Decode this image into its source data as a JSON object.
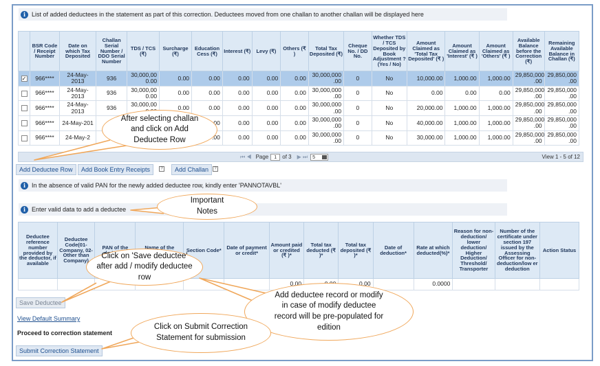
{
  "info1": "List of added deductees in the statement as part of this correction. Deductees moved from one challan to another challan will be displayed here",
  "grid1": {
    "headers": [
      "",
      "BSR Code / Receipt Number",
      "Date on which Tax Deposited",
      "Challan Serial Number / DDO Serial Number",
      "TDS / TCS (₹)",
      "Surcharge (₹)",
      "Education Cess (₹)",
      "Interest (₹)",
      "Levy (₹)",
      "Others (₹ )",
      "Total Tax Deposited (₹)",
      "Cheque No. / DD No.",
      "Whether TDS / TCS Deposited by Book Adjustment ? (Yes / No)",
      "Amount Claimed as 'Total Tax Deposited' (₹ )",
      "Amount Claimed as 'Interest' (₹ )",
      "Amount Claimed as 'Others' (₹ )",
      "Available Balance before the Correction (₹)",
      "Remaining Available Balance in Challan (₹)"
    ],
    "rows": [
      {
        "checked": true,
        "cells": [
          "966****",
          "24-May-2013",
          "936",
          "30,000,00 0.00",
          "0.00",
          "0.00",
          "0.00",
          "0.00",
          "0.00",
          "30,000,000 .00",
          "0",
          "No",
          "10,000.00",
          "1,000.00",
          "1,000.00",
          "29,850,000 .00",
          "29,850,000 .00"
        ]
      },
      {
        "checked": false,
        "cells": [
          "966****",
          "24-May-2013",
          "936",
          "30,000,00 0.00",
          "0.00",
          "0.00",
          "0.00",
          "0.00",
          "0.00",
          "30,000,000 .00",
          "0",
          "No",
          "0.00",
          "0.00",
          "0.00",
          "29,850,000 .00",
          "29,850,000 .00"
        ]
      },
      {
        "checked": false,
        "cells": [
          "966****",
          "24-May-2013",
          "936",
          "30,000,00 0.00",
          "0.00",
          "0.00",
          "0.00",
          "0.00",
          "0.00",
          "30,000,000 .00",
          "0",
          "No",
          "20,000.00",
          "1,000.00",
          "1,000.00",
          "29,850,000 .00",
          "29,850,000 .00"
        ]
      },
      {
        "checked": false,
        "cells": [
          "966****",
          "24-May-201",
          "",
          "",
          "",
          ".00",
          "0.00",
          "0.00",
          "0.00",
          "30,000,000 .00",
          "0",
          "No",
          "40,000.00",
          "1,000.00",
          "1,000.00",
          "29,850,000 .00",
          "29,850,000 .00"
        ]
      },
      {
        "checked": false,
        "cells": [
          "966****",
          "24-May-2",
          "",
          "",
          "",
          ".00",
          "0.00",
          "0.00",
          "0.00",
          "30,000,000 .00",
          "0",
          "No",
          "30,000.00",
          "1,000.00",
          "1,000.00",
          "29,850,000 .00",
          "29,850,000 .00"
        ]
      }
    ]
  },
  "pager": {
    "prev": "⏮ ◀",
    "page_label": "Page",
    "page_value": "1",
    "of_label": "of 3",
    "next": "▶ ⏭",
    "size": "5",
    "view": "View 1 - 5 of 12"
  },
  "buttons": {
    "add_deductee_row": "Add Deductee Row",
    "add_book_entry": "Add Book Entry Receipts",
    "add_challan": "Add Challan",
    "save_deductee": "Save Deductee",
    "submit_correction": "Submit Correction Statement"
  },
  "info2": "In the absence of valid PAN for the newly added deductee row, kindly enter 'PANNOTAVBL'",
  "info3": "Enter valid data to add a deductee",
  "grid2": {
    "headers": [
      "Deductee reference number provided by the deductor, if available",
      "Deductee Code(01-Company, 02-Other than Company)",
      "PAN of the deductee",
      "Name of the deductee",
      "Section Code*",
      "Date of payment or credit*",
      "Amount paid or credited (₹ )*",
      "Total tax deducted (₹ )*",
      "Total tax deposited (₹ )*",
      "Date of deduction*",
      "Rate at which deducted(%)*",
      "Reason for non-deduction/ lower deduction/ Higher Deduction/ Threshold/ Transporter",
      "Number of the certificate under section 197 issued by the Assessing Officer for non-deduction/low er deduction",
      "Action Status"
    ],
    "row": [
      "",
      "",
      "",
      "",
      "",
      "",
      "0.00",
      "0.00",
      "0.00",
      "",
      "0.0000",
      "",
      "",
      ""
    ]
  },
  "links": {
    "view_default_summary": "View Default Summary"
  },
  "proceed_label": "Proceed to correction statement",
  "callouts": {
    "add_row": "After selecting challan and click on Add Deductee Row",
    "notes": "Important Notes",
    "save": "Click on 'Save deductee' after add / modify deductee row",
    "add_record": "Add deductee record or modify in case of modify deductee record will be pre-populated for edition",
    "submit": "Click on Submit Correction Statement for submission"
  },
  "colors": {
    "border": "#7a9cc7",
    "header_bg": "#dde9f5",
    "selected_row": "#aecbea",
    "callout_border": "#f0a75a",
    "accent": "#1f5fa8"
  }
}
